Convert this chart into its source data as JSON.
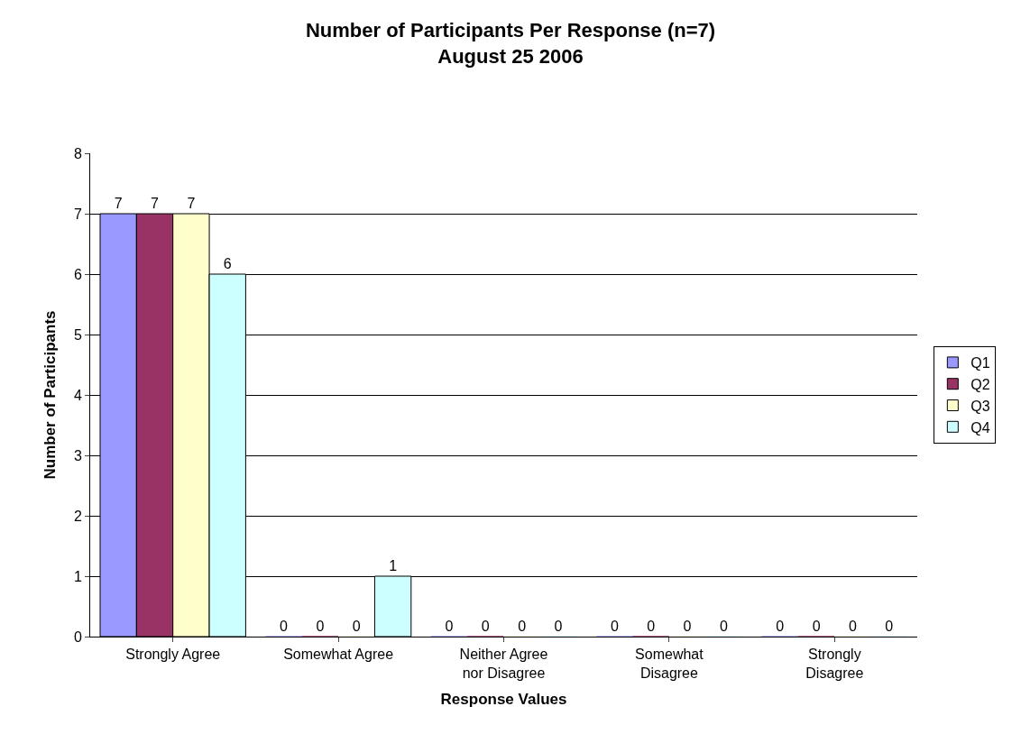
{
  "chart_data": {
    "type": "bar",
    "title": "Number of Participants Per Response (n=7)\nAugust 25 2006",
    "xlabel": "Response Values",
    "ylabel": "Number of Participants",
    "categories": [
      "Strongly Agree",
      "Somewhat Agree",
      "Neither Agree nor Disagree",
      "Somewhat Disagree",
      "Strongly Disagree"
    ],
    "series": [
      {
        "name": "Q1",
        "color": "#9999ff",
        "values": [
          7,
          0,
          0,
          0,
          0
        ]
      },
      {
        "name": "Q2",
        "color": "#993366",
        "values": [
          7,
          0,
          0,
          0,
          0
        ]
      },
      {
        "name": "Q3",
        "color": "#ffffcc",
        "values": [
          7,
          0,
          0,
          0,
          0
        ]
      },
      {
        "name": "Q4",
        "color": "#ccffff",
        "values": [
          6,
          1,
          0,
          0,
          0
        ]
      }
    ],
    "ylim": [
      0,
      8
    ],
    "yticks": [
      0,
      1,
      2,
      3,
      4,
      5,
      6,
      7,
      8
    ],
    "grid": "y",
    "legend": "right",
    "data_labels": true
  }
}
